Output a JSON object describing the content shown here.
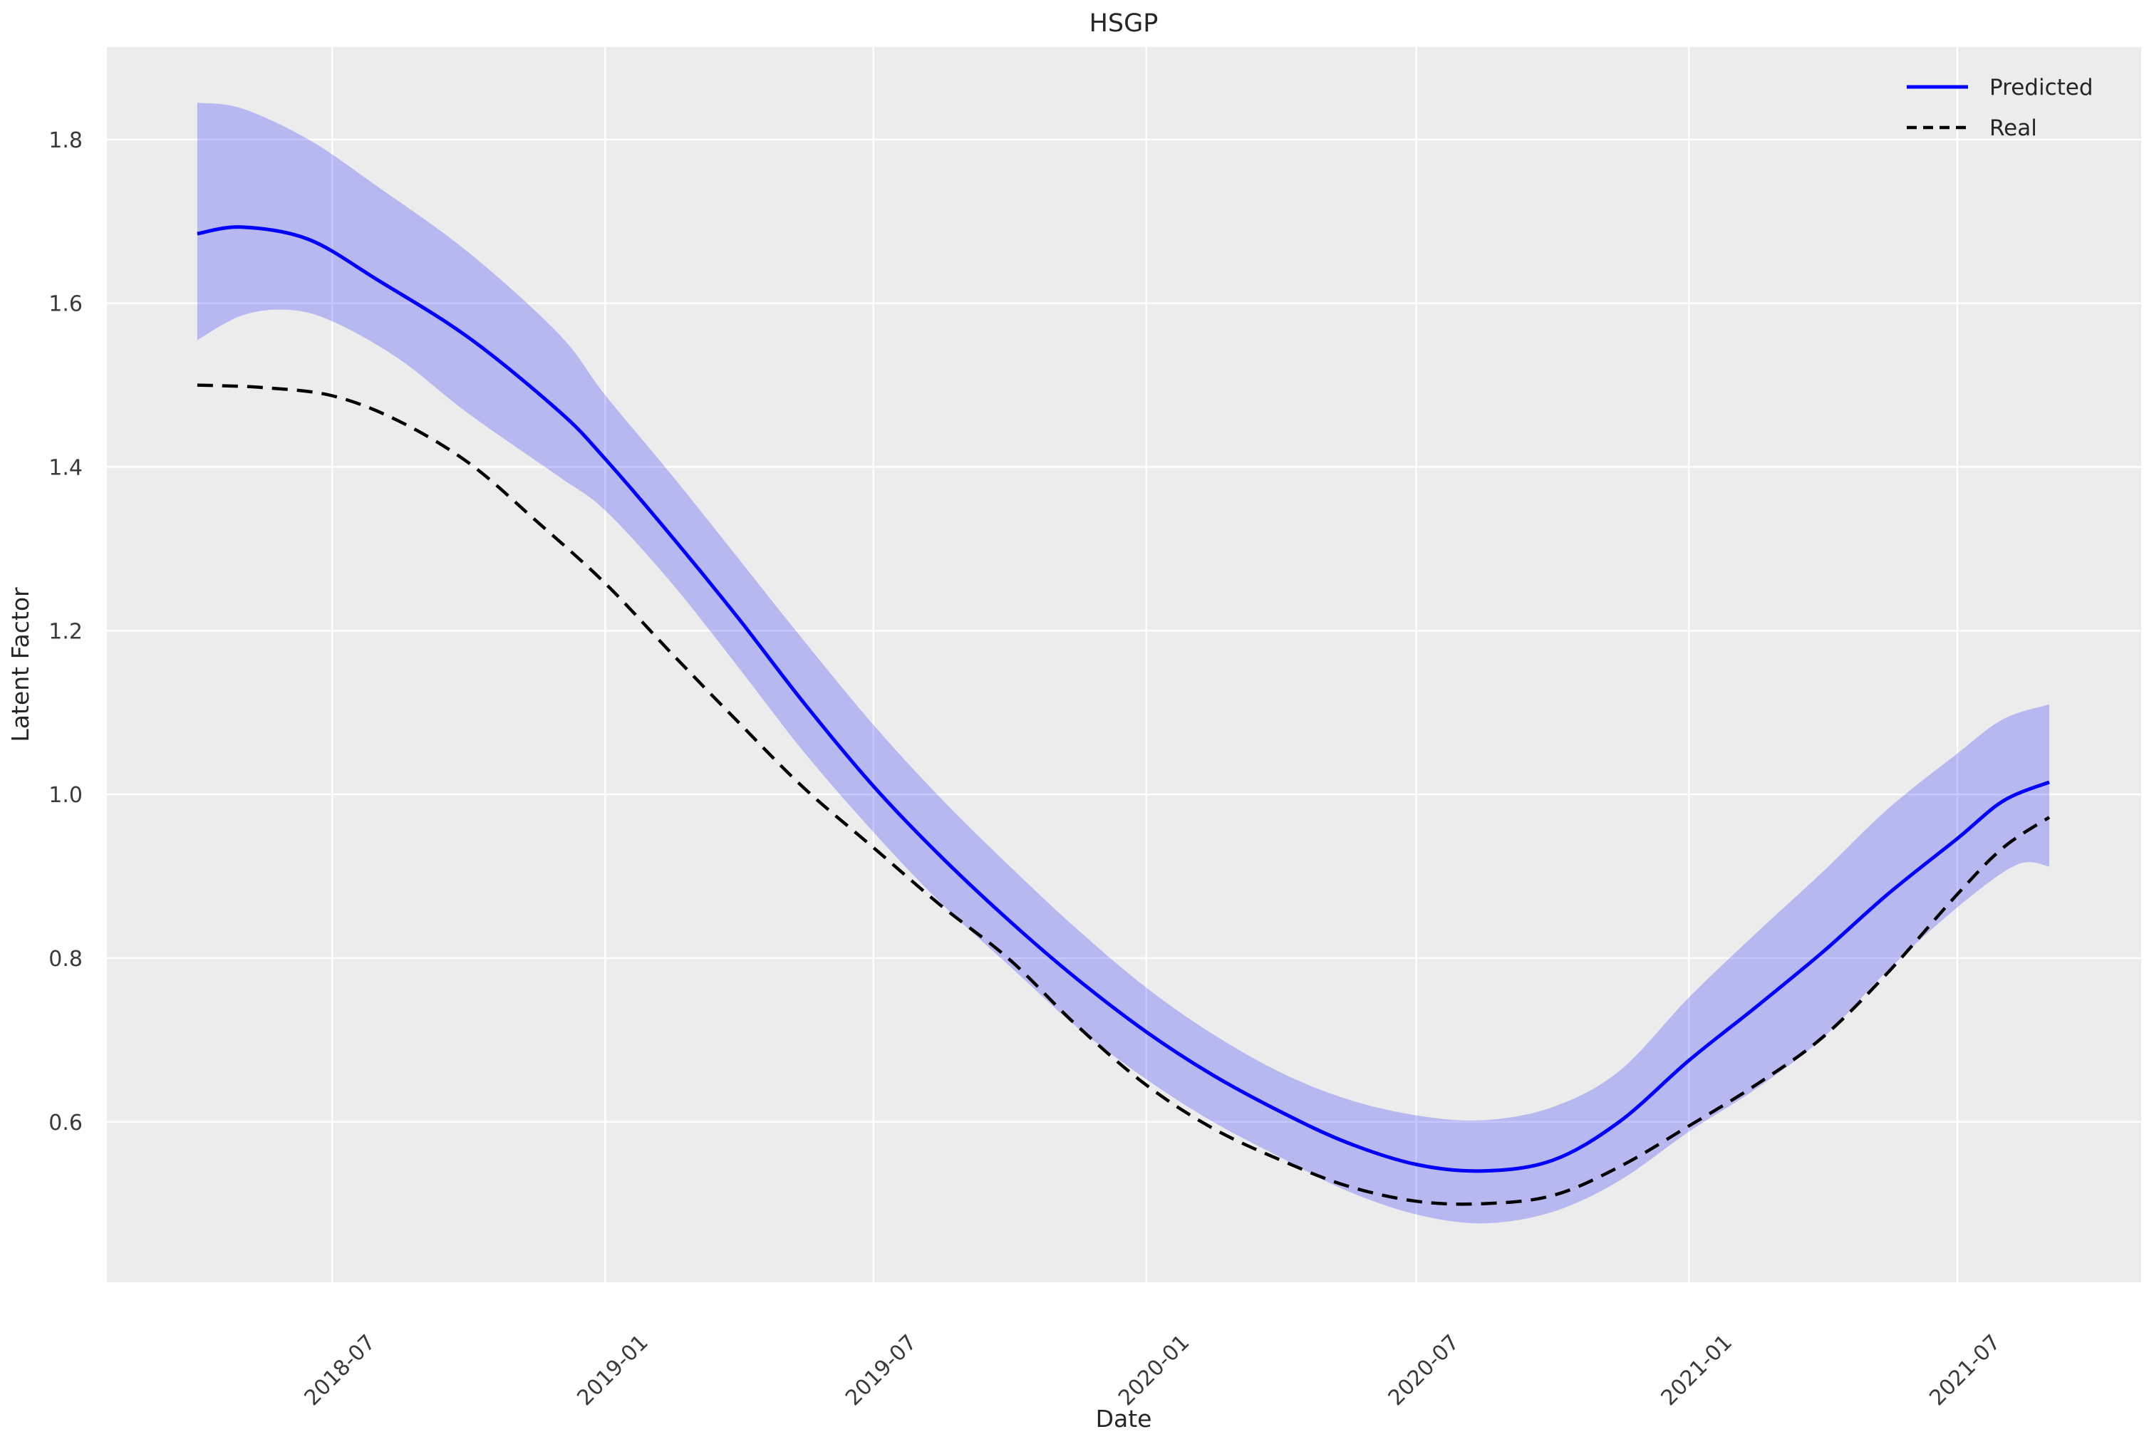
{
  "styles": {
    "plot_bg": "#ececec",
    "grid_color": "#ffffff",
    "text_color": "#262626",
    "tick_color": "#3a3a3a",
    "predicted_color": "#0000ff",
    "real_color": "#000000",
    "band_color": "#0000ff",
    "band_opacity": 0.22
  },
  "chart_data": {
    "type": "line",
    "title": "HSGP",
    "xlabel": "Date",
    "ylabel": "Latent Factor",
    "grid": true,
    "xlim": [
      "2018-01-30",
      "2021-11-02"
    ],
    "ylim": [
      0.404,
      1.913
    ],
    "x_ticks": [
      {
        "label": "2018-07",
        "date": "2018-07-01"
      },
      {
        "label": "2019-01",
        "date": "2019-01-01"
      },
      {
        "label": "2019-07",
        "date": "2019-07-01"
      },
      {
        "label": "2020-01",
        "date": "2020-01-01"
      },
      {
        "label": "2020-07",
        "date": "2020-07-01"
      },
      {
        "label": "2021-01",
        "date": "2021-01-01"
      },
      {
        "label": "2021-07",
        "date": "2021-07-01"
      }
    ],
    "y_ticks": [
      0.6,
      0.8,
      1.0,
      1.2,
      1.4,
      1.6,
      1.8
    ],
    "legend": {
      "position": "upper right",
      "entries": [
        {
          "label": "Predicted",
          "style": "solid",
          "color": "#0000ff"
        },
        {
          "label": "Real",
          "style": "dashed",
          "color": "#000000"
        }
      ]
    },
    "series": [
      {
        "name": "Predicted",
        "style": "solid",
        "color": "#0000ff",
        "points": [
          [
            "2018-04-01",
            1.685
          ],
          [
            "2018-05-01",
            1.693
          ],
          [
            "2018-06-15",
            1.678
          ],
          [
            "2018-08-01",
            1.628
          ],
          [
            "2018-10-01",
            1.558
          ],
          [
            "2018-12-01",
            1.468
          ],
          [
            "2019-01-01",
            1.41
          ],
          [
            "2019-02-15",
            1.315
          ],
          [
            "2019-04-01",
            1.215
          ],
          [
            "2019-05-15",
            1.112
          ],
          [
            "2019-07-01",
            1.01
          ],
          [
            "2019-08-15",
            0.925
          ],
          [
            "2019-10-01",
            0.845
          ],
          [
            "2019-11-15",
            0.775
          ],
          [
            "2020-01-01",
            0.71
          ],
          [
            "2020-02-15",
            0.657
          ],
          [
            "2020-04-01",
            0.612
          ],
          [
            "2020-05-15",
            0.575
          ],
          [
            "2020-07-01",
            0.548
          ],
          [
            "2020-08-15",
            0.54
          ],
          [
            "2020-10-01",
            0.553
          ],
          [
            "2020-11-15",
            0.6
          ],
          [
            "2021-01-01",
            0.675
          ],
          [
            "2021-02-15",
            0.74
          ],
          [
            "2021-04-01",
            0.807
          ],
          [
            "2021-05-15",
            0.878
          ],
          [
            "2021-07-01",
            0.946
          ],
          [
            "2021-08-01",
            0.992
          ],
          [
            "2021-09-01",
            1.015
          ]
        ]
      },
      {
        "name": "Real",
        "style": "dashed",
        "color": "#000000",
        "points": [
          [
            "2018-04-01",
            1.5
          ],
          [
            "2018-05-15",
            1.497
          ],
          [
            "2018-07-01",
            1.487
          ],
          [
            "2018-08-15",
            1.456
          ],
          [
            "2018-10-01",
            1.405
          ],
          [
            "2018-11-15",
            1.335
          ],
          [
            "2019-01-01",
            1.258
          ],
          [
            "2019-02-15",
            1.172
          ],
          [
            "2019-04-01",
            1.088
          ],
          [
            "2019-05-15",
            1.008
          ],
          [
            "2019-07-01",
            0.935
          ],
          [
            "2019-08-15",
            0.865
          ],
          [
            "2019-10-01",
            0.798
          ],
          [
            "2019-11-15",
            0.718
          ],
          [
            "2020-01-01",
            0.645
          ],
          [
            "2020-02-15",
            0.592
          ],
          [
            "2020-04-01",
            0.553
          ],
          [
            "2020-05-15",
            0.522
          ],
          [
            "2020-07-01",
            0.503
          ],
          [
            "2020-08-15",
            0.5
          ],
          [
            "2020-10-01",
            0.51
          ],
          [
            "2020-11-15",
            0.545
          ],
          [
            "2021-01-01",
            0.595
          ],
          [
            "2021-02-15",
            0.645
          ],
          [
            "2021-04-01",
            0.703
          ],
          [
            "2021-05-15",
            0.782
          ],
          [
            "2021-07-01",
            0.878
          ],
          [
            "2021-08-01",
            0.935
          ],
          [
            "2021-09-01",
            0.972
          ]
        ]
      },
      {
        "name": "ci_band",
        "type": "band",
        "color": "#0000ff",
        "opacity": 0.22,
        "upper": [
          [
            "2018-04-01",
            1.845
          ],
          [
            "2018-05-01",
            1.838
          ],
          [
            "2018-06-15",
            1.8
          ],
          [
            "2018-08-01",
            1.742
          ],
          [
            "2018-10-01",
            1.662
          ],
          [
            "2018-12-01",
            1.562
          ],
          [
            "2019-01-01",
            1.488
          ],
          [
            "2019-02-15",
            1.39
          ],
          [
            "2019-04-01",
            1.288
          ],
          [
            "2019-05-15",
            1.188
          ],
          [
            "2019-07-01",
            1.085
          ],
          [
            "2019-08-15",
            0.996
          ],
          [
            "2019-10-01",
            0.912
          ],
          [
            "2019-11-15",
            0.836
          ],
          [
            "2020-01-01",
            0.764
          ],
          [
            "2020-02-15",
            0.707
          ],
          [
            "2020-04-01",
            0.66
          ],
          [
            "2020-05-15",
            0.628
          ],
          [
            "2020-07-01",
            0.608
          ],
          [
            "2020-08-15",
            0.602
          ],
          [
            "2020-10-01",
            0.618
          ],
          [
            "2020-11-15",
            0.662
          ],
          [
            "2021-01-01",
            0.752
          ],
          [
            "2021-02-15",
            0.83
          ],
          [
            "2021-04-01",
            0.905
          ],
          [
            "2021-05-15",
            0.982
          ],
          [
            "2021-07-01",
            1.05
          ],
          [
            "2021-08-01",
            1.092
          ],
          [
            "2021-09-01",
            1.11
          ]
        ],
        "lower": [
          [
            "2018-04-01",
            1.555
          ],
          [
            "2018-05-01",
            1.585
          ],
          [
            "2018-06-01",
            1.592
          ],
          [
            "2018-07-01",
            1.578
          ],
          [
            "2018-08-15",
            1.532
          ],
          [
            "2018-10-01",
            1.465
          ],
          [
            "2018-12-01",
            1.388
          ],
          [
            "2019-01-01",
            1.347
          ],
          [
            "2019-02-15",
            1.258
          ],
          [
            "2019-04-01",
            1.155
          ],
          [
            "2019-05-15",
            1.052
          ],
          [
            "2019-07-01",
            0.954
          ],
          [
            "2019-08-15",
            0.868
          ],
          [
            "2019-10-01",
            0.79
          ],
          [
            "2019-11-15",
            0.716
          ],
          [
            "2020-01-01",
            0.652
          ],
          [
            "2020-02-15",
            0.6
          ],
          [
            "2020-04-01",
            0.556
          ],
          [
            "2020-05-15",
            0.516
          ],
          [
            "2020-07-01",
            0.487
          ],
          [
            "2020-08-15",
            0.476
          ],
          [
            "2020-10-01",
            0.49
          ],
          [
            "2020-11-15",
            0.528
          ],
          [
            "2021-01-01",
            0.588
          ],
          [
            "2021-02-15",
            0.64
          ],
          [
            "2021-04-01",
            0.702
          ],
          [
            "2021-05-15",
            0.785
          ],
          [
            "2021-07-01",
            0.862
          ],
          [
            "2021-08-10",
            0.914
          ],
          [
            "2021-09-01",
            0.912
          ]
        ]
      }
    ]
  }
}
